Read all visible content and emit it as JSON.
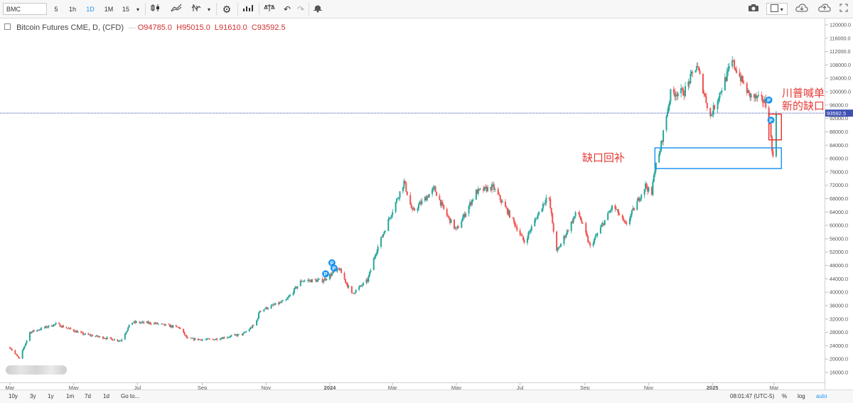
{
  "toolbar": {
    "symbol": "BMC",
    "intervals": [
      "5",
      "1h",
      "1D",
      "1M",
      "15"
    ],
    "active_interval": "1D"
  },
  "legend": {
    "title": "Bitcoin Futures CME, D, (CFD)",
    "open": "O94785.0",
    "high": "H95015.0",
    "low": "L91610.0",
    "close": "C93592.5"
  },
  "bottombar": {
    "ranges": [
      "10y",
      "3y",
      "1y",
      "1m",
      "7d",
      "1d"
    ],
    "goto": "Go to...",
    "time": "08:01:47 (UTC-5)",
    "percent": "%",
    "log": "log",
    "auto": "auto"
  },
  "chart_data": {
    "type": "candlestick",
    "title": "Bitcoin Futures CME, D, (CFD)",
    "x_ticks": [
      "Mar",
      "May",
      "Jul",
      "Sep",
      "Nov",
      "2024",
      "Mar",
      "May",
      "Jul",
      "Sep",
      "Nov",
      "2025",
      "Mar"
    ],
    "y_ticks": [
      16000,
      20000,
      24000,
      28000,
      32000,
      36000,
      40000,
      44000,
      48000,
      52000,
      56000,
      60000,
      64000,
      68000,
      72000,
      76000,
      80000,
      84000,
      88000,
      92000,
      96000,
      100000,
      104000,
      108000,
      112000,
      116000,
      120000
    ],
    "ylim": [
      14000,
      120500
    ],
    "price_line": 93592.5,
    "price_label": "93592.5",
    "key_points": [
      {
        "date": "2023-03-01",
        "price": 23500
      },
      {
        "date": "2023-03-10",
        "price": 20000
      },
      {
        "date": "2023-03-20",
        "price": 28000
      },
      {
        "date": "2023-04-14",
        "price": 30500
      },
      {
        "date": "2023-05-10",
        "price": 27500
      },
      {
        "date": "2023-06-15",
        "price": 25500
      },
      {
        "date": "2023-06-25",
        "price": 31000
      },
      {
        "date": "2023-07-15",
        "price": 30800
      },
      {
        "date": "2023-08-10",
        "price": 29400
      },
      {
        "date": "2023-08-18",
        "price": 26000
      },
      {
        "date": "2023-09-10",
        "price": 25800
      },
      {
        "date": "2023-10-10",
        "price": 27500
      },
      {
        "date": "2023-10-22",
        "price": 30500
      },
      {
        "date": "2023-10-26",
        "price": 34500
      },
      {
        "date": "2023-11-20",
        "price": 37500
      },
      {
        "date": "2023-12-05",
        "price": 43500
      },
      {
        "date": "2023-12-25",
        "price": 43500
      },
      {
        "date": "2024-01-10",
        "price": 47000
      },
      {
        "date": "2024-01-22",
        "price": 39500
      },
      {
        "date": "2024-02-06",
        "price": 43500
      },
      {
        "date": "2024-02-14",
        "price": 52000
      },
      {
        "date": "2024-02-28",
        "price": 63000
      },
      {
        "date": "2024-03-12",
        "price": 73000
      },
      {
        "date": "2024-03-20",
        "price": 64000
      },
      {
        "date": "2024-04-10",
        "price": 71000
      },
      {
        "date": "2024-04-20",
        "price": 64000
      },
      {
        "date": "2024-05-01",
        "price": 58500
      },
      {
        "date": "2024-05-20",
        "price": 70000
      },
      {
        "date": "2024-06-05",
        "price": 71500
      },
      {
        "date": "2024-06-25",
        "price": 61000
      },
      {
        "date": "2024-07-05",
        "price": 55000
      },
      {
        "date": "2024-07-28",
        "price": 69500
      },
      {
        "date": "2024-08-05",
        "price": 52000
      },
      {
        "date": "2024-08-25",
        "price": 64500
      },
      {
        "date": "2024-09-06",
        "price": 53500
      },
      {
        "date": "2024-09-28",
        "price": 66000
      },
      {
        "date": "2024-10-10",
        "price": 60000
      },
      {
        "date": "2024-10-29",
        "price": 72000
      },
      {
        "date": "2024-11-04",
        "price": 69000
      },
      {
        "date": "2024-11-06",
        "price": 76000
      },
      {
        "date": "2024-11-11",
        "price": 81000
      },
      {
        "date": "2024-11-22",
        "price": 99500
      },
      {
        "date": "2024-12-05",
        "price": 100000
      },
      {
        "date": "2024-12-17",
        "price": 108000
      },
      {
        "date": "2024-12-30",
        "price": 92500
      },
      {
        "date": "2025-01-20",
        "price": 109000
      },
      {
        "date": "2025-02-05",
        "price": 99000
      },
      {
        "date": "2025-02-20",
        "price": 97000
      },
      {
        "date": "2025-02-24",
        "price": 93000
      },
      {
        "date": "2025-02-28",
        "price": 80000
      },
      {
        "date": "2025-03-03",
        "price": 93600
      }
    ],
    "annotations": [
      {
        "text": "川普喊单\n新的缺口",
        "color": "#e53935"
      },
      {
        "text": "缺口回补",
        "color": "#e53935"
      }
    ],
    "zones": [
      {
        "name": "gap-fill-zone",
        "from": 77000,
        "to": 83200,
        "date_from": "2024-11-07",
        "date_to": "2025-03-08",
        "color": "#2196f3"
      },
      {
        "name": "new-gap-zone",
        "from": 85600,
        "to": 93300,
        "date_from": "2025-02-24",
        "date_to": "2025-03-08",
        "color": "#e53935"
      }
    ],
    "markers": [
      {
        "date": "2023-12-28",
        "price": 45500,
        "label": "P"
      },
      {
        "date": "2024-01-03",
        "price": 48800,
        "label": "P"
      },
      {
        "date": "2024-01-05",
        "price": 47200,
        "label": "P"
      },
      {
        "date": "2025-02-24",
        "price": 97500,
        "label": "P"
      },
      {
        "date": "2025-02-26",
        "price": 91500,
        "label": "P"
      }
    ],
    "up_color": "#26a69a",
    "down_color": "#ef5350",
    "grid": false
  }
}
